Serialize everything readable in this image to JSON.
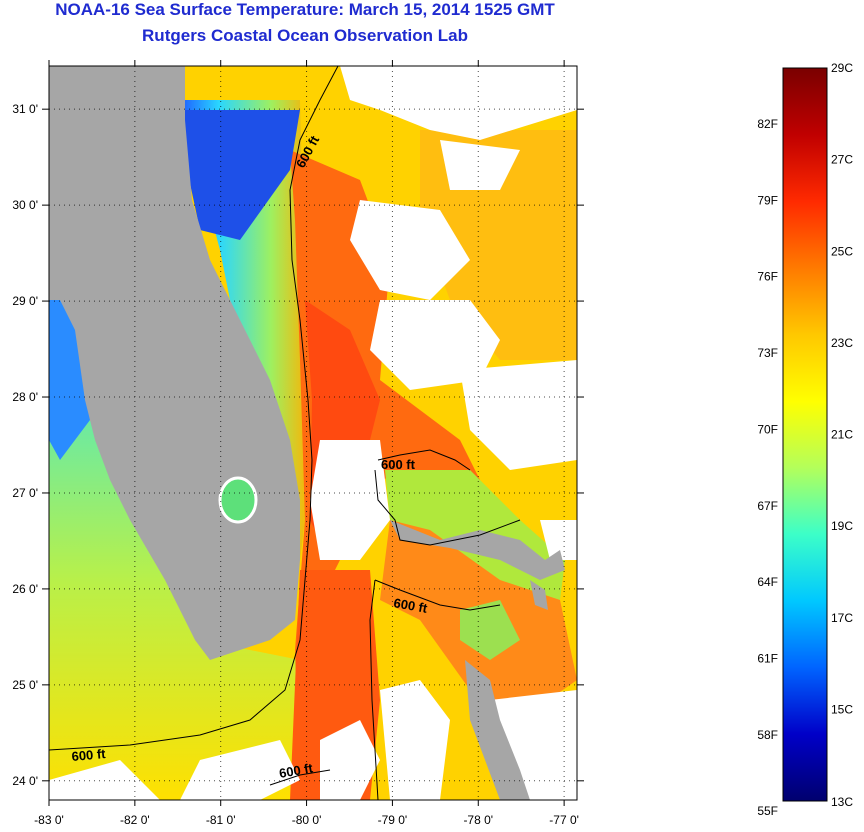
{
  "header": {
    "title": "NOAA-16 Sea Surface Temperature:  March 15, 2014 1525 GMT",
    "subtitle": "Rutgers Coastal Ocean Observation Lab"
  },
  "map": {
    "lon_range": [
      -83,
      -76.85
    ],
    "lat_range": [
      23.8,
      31.45
    ],
    "lon_ticks": [
      "-83 0'",
      "-82 0'",
      "-81 0'",
      "-80 0'",
      "-79 0'",
      "-78 0'",
      "-77 0'"
    ],
    "lat_ticks": [
      "24 0'",
      "25 0'",
      "26 0'",
      "27 0'",
      "28 0'",
      "29 0'",
      "30 0'",
      "31 0'"
    ],
    "contour_labels": [
      "600 ft",
      "600 ft",
      "600 ft",
      "600 ft",
      "600 ft"
    ],
    "land_color": "#a6a6a6",
    "cloud_color": "#ffffff"
  },
  "colorbar": {
    "celsius_labels": [
      "29C",
      "27C",
      "25C",
      "23C",
      "21C",
      "19C",
      "17C",
      "15C",
      "13C"
    ],
    "fahrenheit_labels": [
      "82F",
      "79F",
      "76F",
      "73F",
      "70F",
      "67F",
      "64F",
      "61F",
      "58F",
      "55F"
    ],
    "colors_top_to_bottom": [
      "#7a0000",
      "#c00000",
      "#ff2a00",
      "#ff7a00",
      "#ffc800",
      "#ffff00",
      "#b4ff5a",
      "#3cffc8",
      "#00c8ff",
      "#0064ff",
      "#0000c8",
      "#00006e"
    ]
  }
}
